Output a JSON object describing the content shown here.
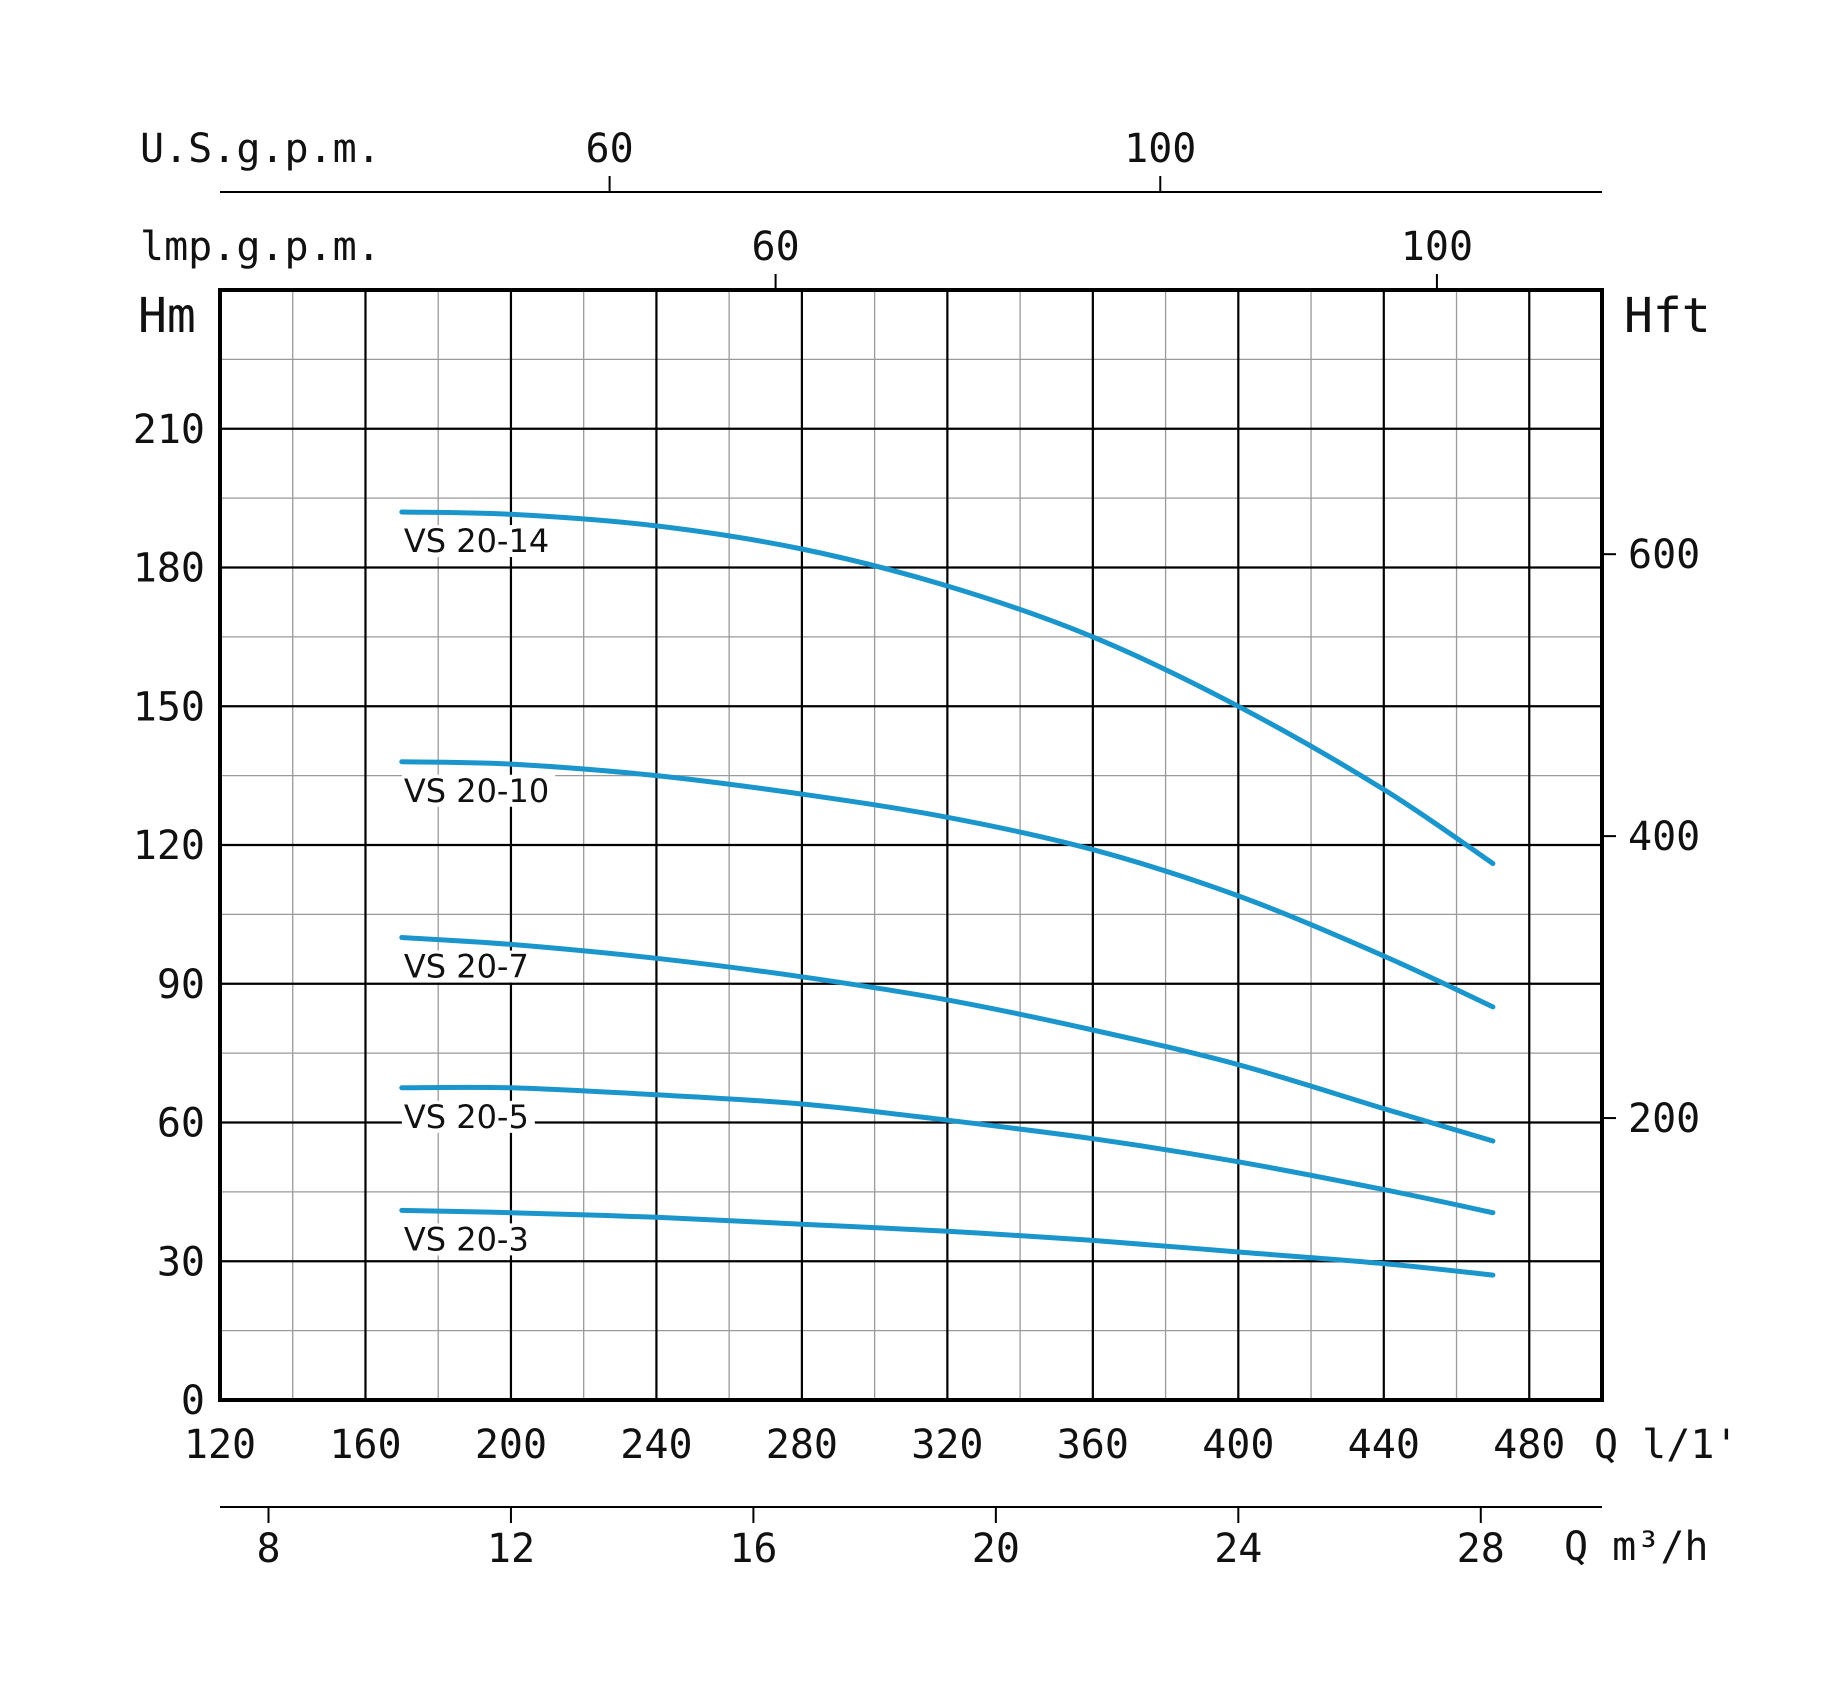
{
  "chart_data": {
    "type": "line",
    "title": "",
    "xlabel": "Q l/1'",
    "ylabel": "Hm",
    "y2label": "Hft",
    "xlim": [
      120,
      500
    ],
    "ylim": [
      0,
      240
    ],
    "grid": true,
    "colors": {
      "curve": "#1a96cc",
      "grid": "#9a9a9a",
      "axis": "#000000"
    },
    "x_ticks": [
      "120",
      "160",
      "200",
      "240",
      "280",
      "320",
      "360",
      "400",
      "440",
      "480"
    ],
    "x_tick_values": [
      120,
      160,
      200,
      240,
      280,
      320,
      360,
      400,
      440,
      480
    ],
    "y_ticks": [
      "0",
      "30",
      "60",
      "90",
      "120",
      "150",
      "180",
      "210"
    ],
    "y_tick_values": [
      0,
      30,
      60,
      90,
      120,
      150,
      180,
      210
    ],
    "secondary_axes": {
      "top_usgpm": {
        "label": "U.S.g.p.m.",
        "ticks": [
          "60",
          "100"
        ],
        "values": [
          60,
          100
        ]
      },
      "top_impgpm": {
        "label": "lmp.g.p.m.",
        "ticks": [
          "60",
          "100"
        ],
        "values": [
          60,
          100
        ]
      },
      "bottom_m3h": {
        "label": "Q m³/h",
        "ticks": [
          "8",
          "12",
          "16",
          "20",
          "24",
          "28"
        ],
        "values": [
          8,
          12,
          16,
          20,
          24,
          28
        ]
      },
      "right_ft": {
        "label": "Hft",
        "ticks": [
          "200",
          "400",
          "600"
        ],
        "values": [
          200,
          400,
          600
        ]
      }
    },
    "series": [
      {
        "name": "VS 20-14",
        "x": [
          170,
          200,
          240,
          280,
          320,
          360,
          400,
          440,
          470
        ],
        "y": [
          192,
          191.5,
          189,
          184,
          176,
          165,
          150,
          132,
          116
        ]
      },
      {
        "name": "VS 20-10",
        "x": [
          170,
          200,
          240,
          280,
          320,
          360,
          400,
          440,
          470
        ],
        "y": [
          138,
          137.5,
          135,
          131,
          126,
          119,
          109,
          96,
          85
        ]
      },
      {
        "name": "VS 20-7",
        "x": [
          170,
          200,
          240,
          280,
          320,
          360,
          400,
          440,
          470
        ],
        "y": [
          100,
          98.5,
          95.5,
          91.5,
          86.5,
          80,
          72.5,
          63,
          56
        ]
      },
      {
        "name": "VS 20-5",
        "x": [
          170,
          200,
          240,
          280,
          320,
          360,
          400,
          440,
          470
        ],
        "y": [
          67.5,
          67.5,
          66,
          64,
          60.5,
          56.5,
          51.5,
          45.5,
          40.5
        ]
      },
      {
        "name": "VS 20-3",
        "x": [
          170,
          200,
          240,
          280,
          320,
          360,
          400,
          440,
          470
        ],
        "y": [
          41,
          40.5,
          39.5,
          38,
          36.5,
          34.5,
          32,
          29.5,
          27
        ]
      }
    ]
  }
}
